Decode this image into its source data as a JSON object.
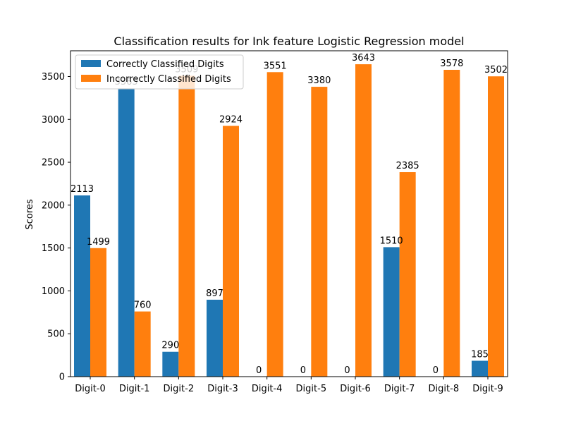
{
  "chart_data": {
    "type": "bar",
    "title": "Classification results for Ink feature Logistic Regression model",
    "xlabel": "",
    "ylabel": "Scores",
    "categories": [
      "Digit-0",
      "Digit-1",
      "Digit-2",
      "Digit-3",
      "Digit-4",
      "Digit-5",
      "Digit-6",
      "Digit-7",
      "Digit-8",
      "Digit-9"
    ],
    "series": [
      {
        "name": "Correctly Classified Digits",
        "color": "#1f77b4",
        "values": [
          2113,
          3363,
          290,
          897,
          0,
          0,
          0,
          1510,
          0,
          185
        ]
      },
      {
        "name": "Incorrectly Classified Digits",
        "color": "#ff7f0e",
        "values": [
          1499,
          760,
          3509,
          2924,
          3551,
          3380,
          3643,
          2385,
          3578,
          3502
        ]
      }
    ],
    "ylim": [
      0,
      3800
    ],
    "yticks": [
      0,
      500,
      1000,
      1500,
      2000,
      2500,
      3000,
      3500
    ],
    "legend_position": "top-left",
    "grid": false
  }
}
